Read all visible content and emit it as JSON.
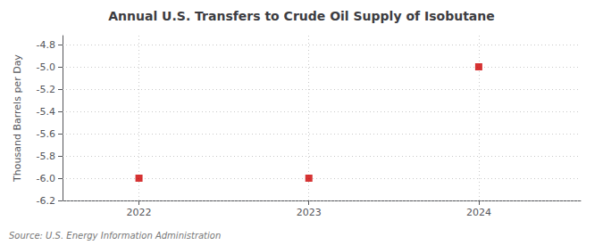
{
  "chart_data": {
    "type": "scatter",
    "title": "Annual U.S. Transfers to Crude Oil Supply of Isobutane",
    "ylabel": "Thousand Barrels per Day",
    "source": "Source: U.S. Energy Information Administration",
    "x": [
      2022,
      2023,
      2024
    ],
    "values": [
      -6.0,
      -6.0,
      -5.0
    ],
    "color": "#cc0000",
    "marker": "square",
    "xlim": [
      2021.55,
      2024.6
    ],
    "xticks": [
      2022,
      2023,
      2024
    ],
    "ylim": [
      -6.2,
      -4.72
    ],
    "yticks": [
      -6.2,
      {
        "value": -6.0,
        "label": "-6.0"
      },
      -5.8,
      -5.6,
      -5.4,
      -5.2,
      {
        "value": -5.0,
        "label": "-5.0"
      },
      -4.8
    ],
    "grid": true
  }
}
